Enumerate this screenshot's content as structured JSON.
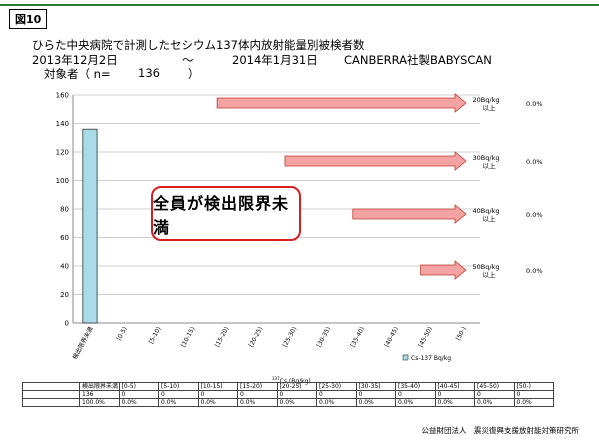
{
  "figure_label": "図10",
  "title_line1": "ひらた中央病院で計測したセシウム137体内放射能量別被検者数",
  "period": {
    "start": "2013年12月2日",
    "tilde": "～",
    "end": "2014年1月31日",
    "device": "CANBERRA社製BABYSCAN"
  },
  "subjects_line": {
    "label": "対象者（ n=",
    "n": "136",
    "close": "）"
  },
  "callout_text": "全員が検出限界未満",
  "chart_data": {
    "type": "bar",
    "categories": [
      "検出限界未満",
      "[0-5)",
      "[5-10)",
      "[10-15)",
      "[15-20)",
      "[20-25)",
      "[25-30)",
      "[30-35)",
      "[35-40)",
      "[40-45)",
      "[45-50)",
      "[50-)"
    ],
    "series": [
      {
        "name": "Cs-137 Bq/kg",
        "values": [
          136,
          0,
          0,
          0,
          0,
          0,
          0,
          0,
          0,
          0,
          0,
          0
        ]
      }
    ],
    "ylim": [
      0,
      160
    ],
    "yticks": [
      0,
      20,
      40,
      60,
      80,
      100,
      120,
      140,
      160
    ],
    "grid": true,
    "legend_position": "bottom-right",
    "bar_color": "#a9dbe8",
    "arrow_color": "#f4a3a3",
    "threshold_arrows": [
      {
        "label_line1": "20Bq/kg",
        "label_line2": "以上",
        "percent": "0.0%",
        "from_category": "[15-20)"
      },
      {
        "label_line1": "30Bq/kg",
        "label_line2": "以上",
        "percent": "0.0%",
        "from_category": "[25-30)"
      },
      {
        "label_line1": "40Bq/kg",
        "label_line2": "以上",
        "percent": "0.0%",
        "from_category": "[35-40)"
      },
      {
        "label_line1": "50Bq/kg",
        "label_line2": "以上",
        "percent": "0.0%",
        "from_category": "[45-50)"
      }
    ]
  },
  "table": {
    "header_title": "137Cs (Bq/kg)",
    "header_title_sup": "137",
    "header_title_rest": "Cs (Bq/kg)",
    "header": [
      "",
      "検出限界未満",
      "[0-5)",
      "[5-10)",
      "[10-15)",
      "[15-20)",
      "[20-25)",
      "[25-30)",
      "[30-35)",
      "[35-40)",
      "[40-45)",
      "[45-50)",
      "[50-)"
    ],
    "rows": [
      [
        "",
        "136",
        "0",
        "0",
        "0",
        "0",
        "0",
        "0",
        "0",
        "0",
        "0",
        "0",
        "0"
      ],
      [
        "",
        "100.0%",
        "0.0%",
        "0.0%",
        "0.0%",
        "0.0%",
        "0.0%",
        "0.0%",
        "0.0%",
        "0.0%",
        "0.0%",
        "0.0%",
        "0.0%"
      ]
    ]
  },
  "footer": "公益財団法人　震災復興支援放射能対策研究所"
}
